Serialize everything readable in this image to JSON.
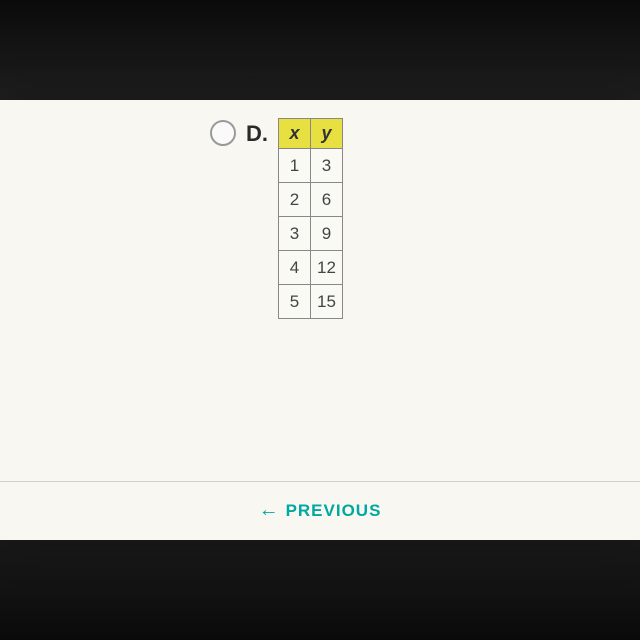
{
  "option": {
    "letter": "D.",
    "selected": false
  },
  "table": {
    "headers": {
      "x": "x",
      "y": "y"
    },
    "header_bg": "#e8e040",
    "cell_bg": "#fafaf5",
    "border_color": "#888888",
    "rows": [
      {
        "x": "1",
        "y": "3"
      },
      {
        "x": "2",
        "y": "6"
      },
      {
        "x": "3",
        "y": "9"
      },
      {
        "x": "4",
        "y": "12"
      },
      {
        "x": "5",
        "y": "15"
      }
    ]
  },
  "nav": {
    "previous_label": "PREVIOUS",
    "arrow_glyph": "←",
    "color": "#00a8a0"
  },
  "colors": {
    "screen_bg": "#f8f7f2",
    "page_bg": "#1a1a1a"
  }
}
